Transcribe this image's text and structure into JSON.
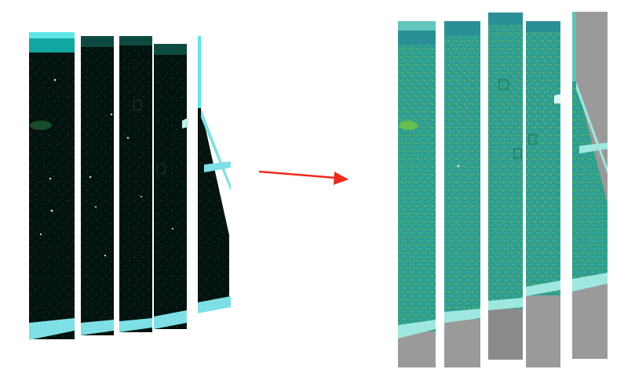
{
  "diagram": {
    "before_panel": {
      "strip_count": 5,
      "tone": "dark-underexposed",
      "colors": {
        "base": "#04130f",
        "speckle": "#1f5a35",
        "bright_dot": "#bfeee6",
        "edge": "#5fe6e6",
        "frame_fill": "#0a2a26"
      }
    },
    "arrow": {
      "color": "#ee2a1c",
      "direction": "right"
    },
    "after_panel": {
      "strip_count": 5,
      "tone": "enhanced-teal",
      "colors": {
        "base": "#2e9c8e",
        "speckle": "#6cc24a",
        "light": "#63c4b9",
        "gray_block": "#9a9a9a",
        "gray_block_dark": "#8a8a8a",
        "edge": "#9ee8e0"
      }
    }
  }
}
